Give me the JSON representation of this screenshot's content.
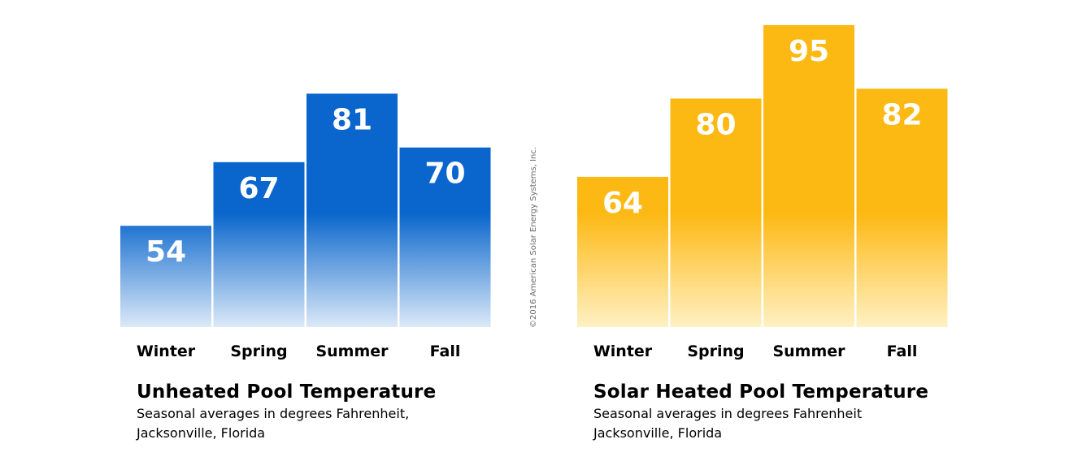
{
  "copyright": "©2016 American Solar Energy Systems, Inc.",
  "chart_data": [
    {
      "type": "bar",
      "title": "Unheated Pool Temperature",
      "subtitle_lines": [
        "Seasonal averages in degrees Fahrenheit,",
        "Jacksonville, Florida"
      ],
      "categories": [
        "Winter",
        "Spring",
        "Summer",
        "Fall"
      ],
      "values": [
        54,
        67,
        81,
        70
      ],
      "color": "#0a66cc",
      "color_fade": "#dce9f8",
      "grid": false
    },
    {
      "type": "bar",
      "title": "Solar Heated Pool Temperature",
      "subtitle_lines": [
        "Seasonal averages in degrees Fahrenheit",
        "Jacksonville, Florida"
      ],
      "categories": [
        "Winter",
        "Spring",
        "Summer",
        "Fall"
      ],
      "values": [
        64,
        80,
        95,
        82
      ],
      "color": "#fdb913",
      "color_fade": "#fff1c4",
      "grid": false
    }
  ]
}
